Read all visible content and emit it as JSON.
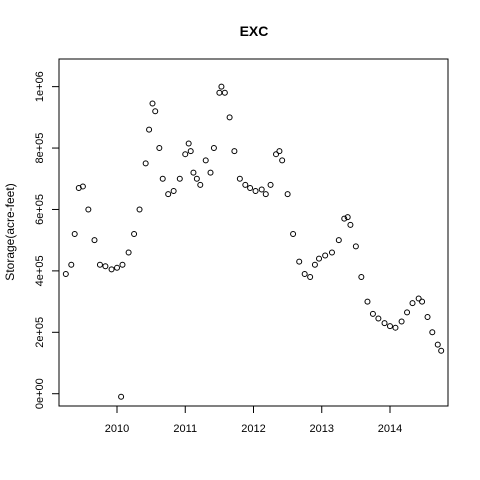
{
  "chart_data": {
    "type": "scatter",
    "title": "EXC",
    "xlabel": "",
    "ylabel": "Storage(acre-feet)",
    "xlim": [
      2009.15,
      2014.85
    ],
    "ylim": [
      -40000,
      1090000
    ],
    "x_ticks": [
      2010,
      2011,
      2012,
      2013,
      2014
    ],
    "x_tick_labels": [
      "2010",
      "2011",
      "2012",
      "2013",
      "2014"
    ],
    "y_ticks": [
      0,
      200000,
      400000,
      600000,
      800000,
      1000000
    ],
    "y_tick_labels": [
      "0e+00",
      "2e+05",
      "4e+05",
      "6e+05",
      "8e+05",
      "1e+06"
    ],
    "grid": false,
    "marker": "open-circle",
    "series": [
      {
        "x": [
          2009.25,
          2009.33,
          2009.38,
          2009.44,
          2009.5,
          2009.58,
          2009.67,
          2009.75,
          2009.83,
          2009.92,
          2010.0,
          2010.08,
          2010.17,
          2010.25,
          2010.33,
          2010.42,
          2010.47,
          2010.52,
          2010.56,
          2010.62,
          2010.67,
          2010.75,
          2010.83,
          2010.92,
          2011.0,
          2011.05,
          2011.08,
          2011.12,
          2011.17,
          2011.22,
          2011.3,
          2011.37,
          2011.42,
          2011.5,
          2011.53,
          2011.58,
          2011.65,
          2011.72,
          2011.8,
          2011.88,
          2011.95,
          2012.03,
          2012.12,
          2012.18,
          2012.25,
          2012.33,
          2012.38,
          2012.42,
          2012.5,
          2012.58,
          2012.67,
          2012.75,
          2012.83,
          2012.9,
          2012.96,
          2013.05,
          2013.15,
          2013.25,
          2013.33,
          2013.38,
          2013.42,
          2013.5,
          2013.58,
          2013.67,
          2013.75,
          2013.83,
          2013.92,
          2014.0,
          2014.08,
          2014.17,
          2014.25,
          2014.33,
          2014.42,
          2014.47,
          2014.55,
          2014.62,
          2014.7,
          2014.75,
          2010.06
        ],
        "y": [
          390000,
          420000,
          520000,
          670000,
          675000,
          600000,
          500000,
          420000,
          415000,
          405000,
          410000,
          420000,
          460000,
          520000,
          600000,
          750000,
          860000,
          945000,
          920000,
          800000,
          700000,
          650000,
          660000,
          700000,
          780000,
          815000,
          790000,
          720000,
          700000,
          680000,
          760000,
          720000,
          800000,
          980000,
          1000000,
          980000,
          900000,
          790000,
          700000,
          680000,
          670000,
          660000,
          665000,
          650000,
          680000,
          780000,
          790000,
          760000,
          650000,
          520000,
          430000,
          390000,
          380000,
          420000,
          440000,
          450000,
          460000,
          500000,
          570000,
          575000,
          550000,
          480000,
          380000,
          300000,
          260000,
          245000,
          230000,
          220000,
          215000,
          235000,
          265000,
          295000,
          310000,
          300000,
          250000,
          200000,
          160000,
          140000,
          -10000
        ]
      }
    ]
  }
}
